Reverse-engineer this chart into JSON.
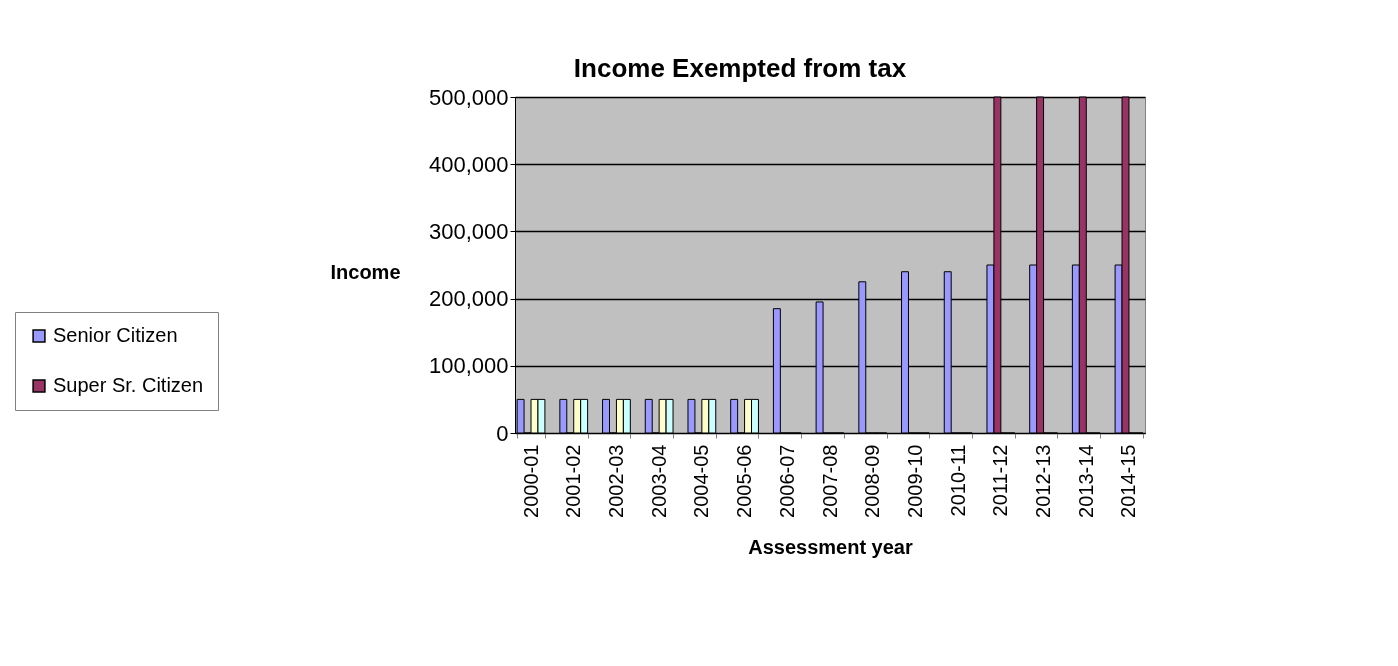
{
  "chart_data": {
    "type": "bar",
    "title": "Income Exempted from tax",
    "xlabel": "Assessment year",
    "ylabel": "Income",
    "categories": [
      "2000-01",
      "2001-02",
      "2002-03",
      "2003-04",
      "2004-05",
      "2005-06",
      "2006-07",
      "2007-08",
      "2008-09",
      "2009-10",
      "2010-11",
      "2011-12",
      "2012-13",
      "2013-14",
      "2014-15"
    ],
    "series": [
      {
        "name": "Senior Citizen",
        "color": "#9999ff",
        "values": [
          50000,
          50000,
          50000,
          50000,
          50000,
          50000,
          185000,
          195000,
          225000,
          240000,
          240000,
          250000,
          250000,
          250000,
          250000
        ]
      },
      {
        "name": "Super Sr. Citizen",
        "color": "#993366",
        "values": [
          0,
          0,
          0,
          0,
          0,
          0,
          0,
          0,
          0,
          0,
          0,
          500000,
          500000,
          500000,
          500000
        ]
      },
      {
        "color": "#ffffcc",
        "values": [
          50000,
          50000,
          50000,
          50000,
          50000,
          50000,
          0,
          0,
          0,
          0,
          0,
          0,
          0,
          0,
          0
        ]
      },
      {
        "color": "#ccffff",
        "values": [
          50000,
          50000,
          50000,
          50000,
          50000,
          50000,
          0,
          0,
          0,
          0,
          0,
          0,
          0,
          0,
          0
        ]
      }
    ],
    "ylim": [
      0,
      500000
    ],
    "yticks": [
      0,
      {
        "value": 100000,
        "label": "100,000"
      },
      {
        "value": 200000,
        "label": "200,000"
      },
      {
        "value": 300000,
        "label": "300,000"
      },
      {
        "value": 400000,
        "label": "400,000"
      },
      {
        "value": 500000,
        "label": "500,000"
      }
    ],
    "grid": "y",
    "legend": "bottom left"
  }
}
